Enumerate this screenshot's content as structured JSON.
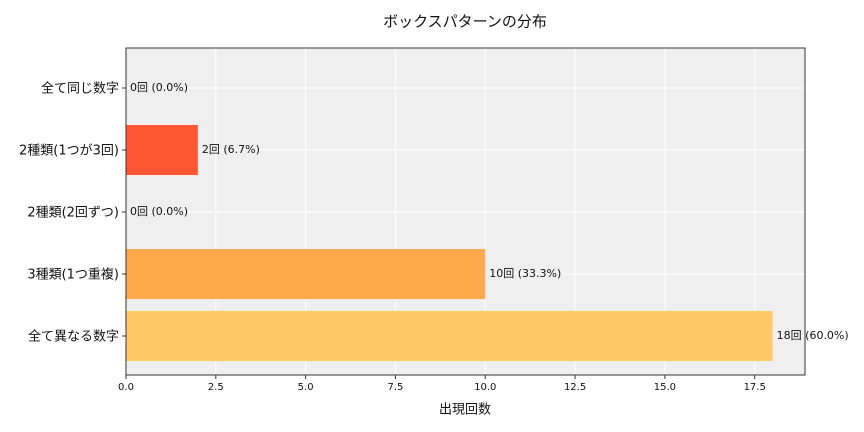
{
  "chart_data": {
    "type": "barh",
    "title": "ボックスパターンの分布",
    "xlabel": "出現回数",
    "categories": [
      "全て同じ数字",
      "2種類(1つが3回)",
      "2種類(2回ずつ)",
      "3種類(1つ重複)",
      "全て異なる数字"
    ],
    "values": [
      0,
      2,
      0,
      10,
      18
    ],
    "value_labels": [
      "0回 (0.0%)",
      "2回 (6.7%)",
      "0回 (0.0%)",
      "10回 (33.3%)",
      "18回 (60.0%)"
    ],
    "colors": [
      "#ff3b2f",
      "#ff5733",
      "#ff8c42",
      "#ffa94d",
      "#ffc966"
    ],
    "xlim": [
      0,
      18.9
    ],
    "xticks": [
      {
        "value": 0,
        "label": "0.0"
      },
      2.5,
      {
        "value": 5,
        "label": "5.0"
      },
      7.5,
      {
        "value": 10,
        "label": "10.0"
      },
      12.5,
      {
        "value": 15,
        "label": "15.0"
      },
      17.5
    ],
    "grid": true
  }
}
